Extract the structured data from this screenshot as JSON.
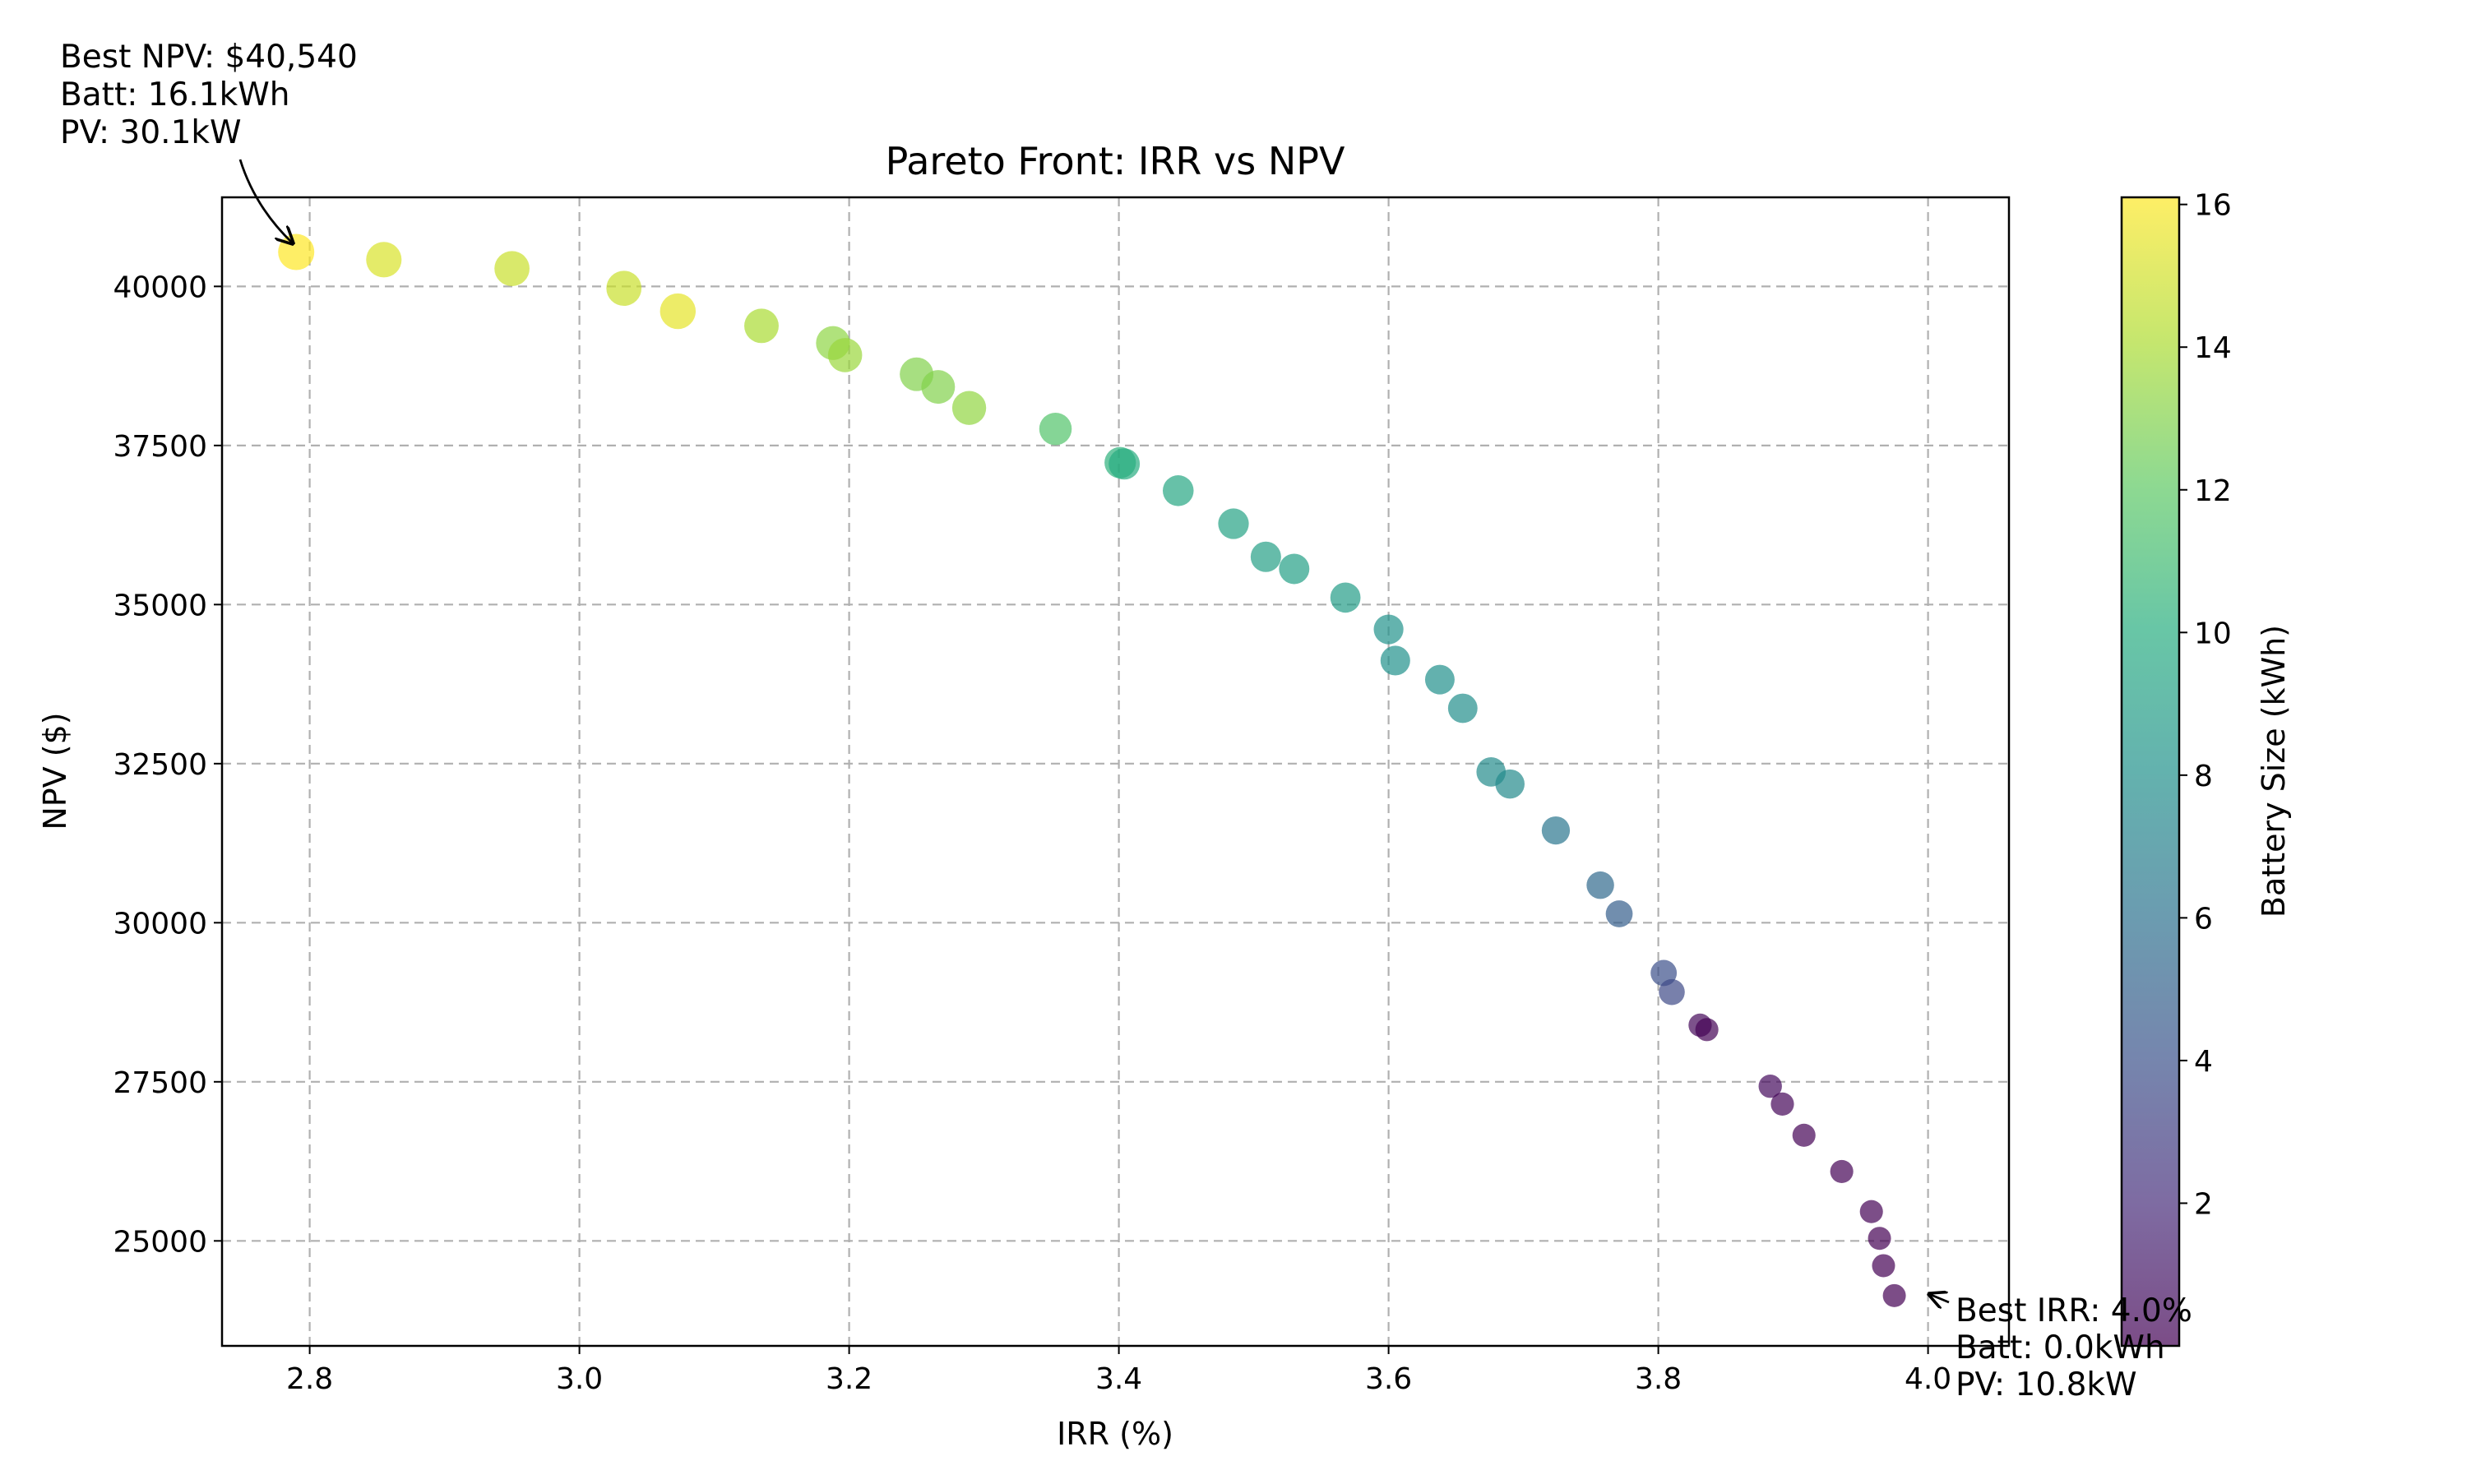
{
  "chart_data": {
    "type": "scatter",
    "title": "Pareto Front: IRR vs NPV",
    "xlabel": "IRR (%)",
    "ylabel": "NPV ($)",
    "xlim": [
      2.735,
      4.06
    ],
    "ylim": [
      23350,
      41400
    ],
    "x_ticks": [
      2.8,
      3.0,
      3.2,
      3.4,
      3.6,
      3.8,
      4.0
    ],
    "x_tick_labels": [
      "2.8",
      "3.0",
      "3.2",
      "3.4",
      "3.6",
      "3.8",
      "4.0"
    ],
    "y_ticks": [
      25000,
      27500,
      30000,
      32500,
      35000,
      37500,
      40000
    ],
    "y_tick_labels": [
      "25000",
      "27500",
      "30000",
      "32500",
      "35000",
      "37500",
      "40000"
    ],
    "grid": true,
    "colormap": "viridis",
    "marker_alpha": 0.7,
    "colorbar": {
      "label": "Battery Size (kWh)",
      "range": [
        0,
        16.1
      ],
      "ticks": [
        2,
        4,
        6,
        8,
        10,
        12,
        14,
        16
      ],
      "tick_labels": [
        "2",
        "4",
        "6",
        "8",
        "10",
        "12",
        "14",
        "16"
      ]
    },
    "series": [
      {
        "points": [
          {
            "irr": 2.79,
            "npv": 40540,
            "battery_kwh": 16.1
          },
          {
            "irr": 2.855,
            "npv": 40420,
            "battery_kwh": 15.2
          },
          {
            "irr": 2.95,
            "npv": 40280,
            "battery_kwh": 14.8
          },
          {
            "irr": 3.033,
            "npv": 39970,
            "battery_kwh": 14.8
          },
          {
            "irr": 3.073,
            "npv": 39610,
            "battery_kwh": 15.5
          },
          {
            "irr": 3.135,
            "npv": 39380,
            "battery_kwh": 14.0
          },
          {
            "irr": 3.188,
            "npv": 39110,
            "battery_kwh": 13.3
          },
          {
            "irr": 3.197,
            "npv": 38920,
            "battery_kwh": 13.6
          },
          {
            "irr": 3.25,
            "npv": 38620,
            "battery_kwh": 13.0
          },
          {
            "irr": 3.266,
            "npv": 38420,
            "battery_kwh": 13.0
          },
          {
            "irr": 3.289,
            "npv": 38090,
            "battery_kwh": 13.4
          },
          {
            "irr": 3.353,
            "npv": 37760,
            "battery_kwh": 11.6
          },
          {
            "irr": 3.401,
            "npv": 37230,
            "battery_kwh": 10.3
          },
          {
            "irr": 3.404,
            "npv": 37210,
            "battery_kwh": 10.0
          },
          {
            "irr": 3.444,
            "npv": 36790,
            "battery_kwh": 9.6
          },
          {
            "irr": 3.485,
            "npv": 36270,
            "battery_kwh": 9.3
          },
          {
            "irr": 3.509,
            "npv": 35750,
            "battery_kwh": 9.1
          },
          {
            "irr": 3.53,
            "npv": 35560,
            "battery_kwh": 9.0
          },
          {
            "irr": 3.568,
            "npv": 35110,
            "battery_kwh": 8.8
          },
          {
            "irr": 3.6,
            "npv": 34610,
            "battery_kwh": 8.2
          },
          {
            "irr": 3.605,
            "npv": 34120,
            "battery_kwh": 8.1
          },
          {
            "irr": 3.638,
            "npv": 33820,
            "battery_kwh": 8.0
          },
          {
            "irr": 3.655,
            "npv": 33370,
            "battery_kwh": 7.9
          },
          {
            "irr": 3.676,
            "npv": 32370,
            "battery_kwh": 7.7
          },
          {
            "irr": 3.69,
            "npv": 32180,
            "battery_kwh": 7.6
          },
          {
            "irr": 3.724,
            "npv": 31450,
            "battery_kwh": 6.3
          },
          {
            "irr": 3.757,
            "npv": 30590,
            "battery_kwh": 5.5
          },
          {
            "irr": 3.771,
            "npv": 30140,
            "battery_kwh": 4.8
          },
          {
            "irr": 3.804,
            "npv": 29210,
            "battery_kwh": 3.9
          },
          {
            "irr": 3.81,
            "npv": 28910,
            "battery_kwh": 3.6
          },
          {
            "irr": 3.831,
            "npv": 28390,
            "battery_kwh": 0.3
          },
          {
            "irr": 3.836,
            "npv": 28320,
            "battery_kwh": 0.1
          },
          {
            "irr": 3.883,
            "npv": 27430,
            "battery_kwh": 0.4
          },
          {
            "irr": 3.892,
            "npv": 27150,
            "battery_kwh": 0.2
          },
          {
            "irr": 3.908,
            "npv": 26660,
            "battery_kwh": 0.1
          },
          {
            "irr": 3.936,
            "npv": 26090,
            "battery_kwh": 0.1
          },
          {
            "irr": 3.958,
            "npv": 25460,
            "battery_kwh": 0.1
          },
          {
            "irr": 3.964,
            "npv": 25040,
            "battery_kwh": 0.0
          },
          {
            "irr": 3.967,
            "npv": 24610,
            "battery_kwh": 0.0
          },
          {
            "irr": 3.975,
            "npv": 24140,
            "battery_kwh": 0.0
          }
        ]
      }
    ],
    "annotations": [
      {
        "lines": [
          "Best NPV: $40,540",
          "Batt: 16.1kWh",
          "PV: 30.1kW"
        ],
        "point_index": 0
      },
      {
        "lines": [
          "Best IRR: 4.0%",
          "Batt: 0.0kWh",
          "PV: 10.8kW"
        ],
        "point_index": 39
      }
    ]
  }
}
